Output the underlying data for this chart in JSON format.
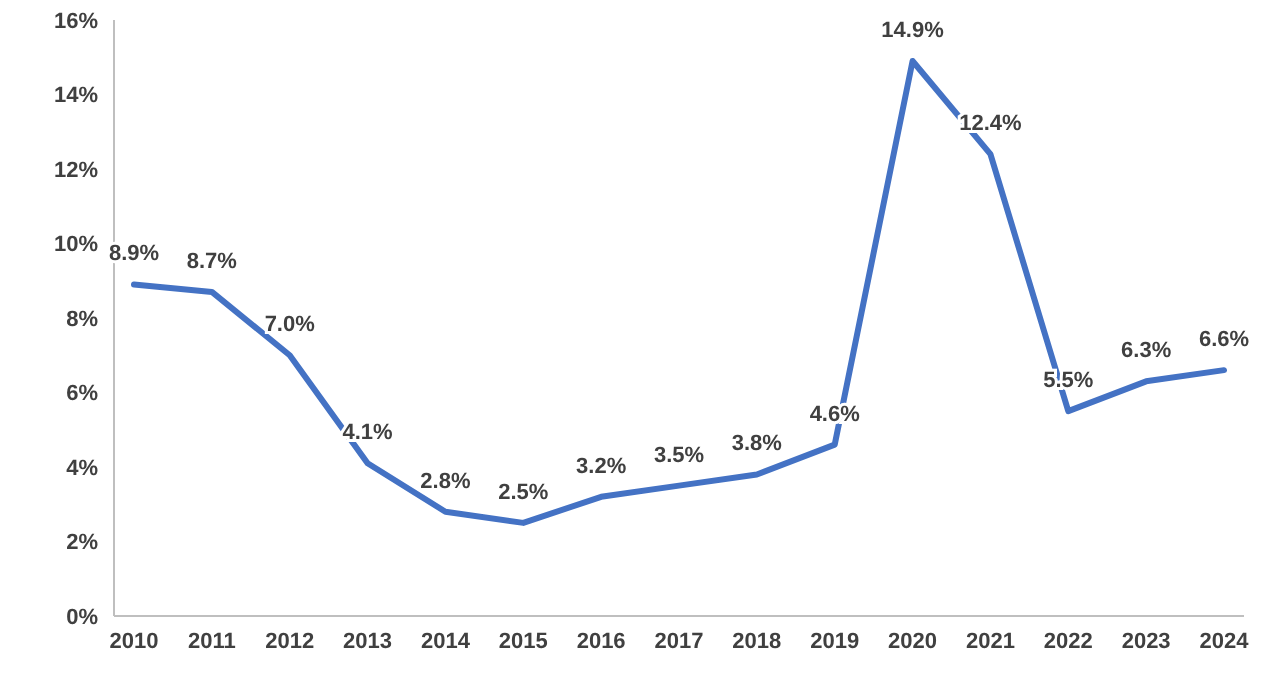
{
  "chart_data": {
    "type": "line",
    "categories": [
      "2010",
      "2011",
      "2012",
      "2013",
      "2014",
      "2015",
      "2016",
      "2017",
      "2018",
      "2019",
      "2020",
      "2021",
      "2022",
      "2023",
      "2024"
    ],
    "series": [
      {
        "color": "#4472c4",
        "values": [
          8.9,
          8.7,
          7.0,
          4.1,
          2.8,
          2.5,
          3.2,
          3.5,
          3.8,
          4.6,
          14.9,
          12.4,
          5.5,
          6.3,
          6.6
        ],
        "value_labels": [
          "8.9%",
          "8.7%",
          "7.0%",
          "4.1%",
          "2.8%",
          "2.5%",
          "3.2%",
          "3.5%",
          "3.8%",
          "4.6%",
          "14.9%",
          "12.4%",
          "5.5%",
          "6.3%",
          "6.6%"
        ]
      }
    ],
    "ylim": [
      0,
      16
    ],
    "yticks": [
      {
        "value": 0,
        "label": "0%"
      },
      {
        "value": 2,
        "label": "2%"
      },
      {
        "value": 4,
        "label": "4%"
      },
      {
        "value": 6,
        "label": "6%"
      },
      {
        "value": 8,
        "label": "8%"
      },
      {
        "value": 10,
        "label": "10%"
      },
      {
        "value": 12,
        "label": "12%"
      },
      {
        "value": 14,
        "label": "14%"
      },
      {
        "value": 16,
        "label": "16%"
      }
    ],
    "grid": false,
    "legend": false,
    "marker": "none",
    "line_style": "solid"
  }
}
